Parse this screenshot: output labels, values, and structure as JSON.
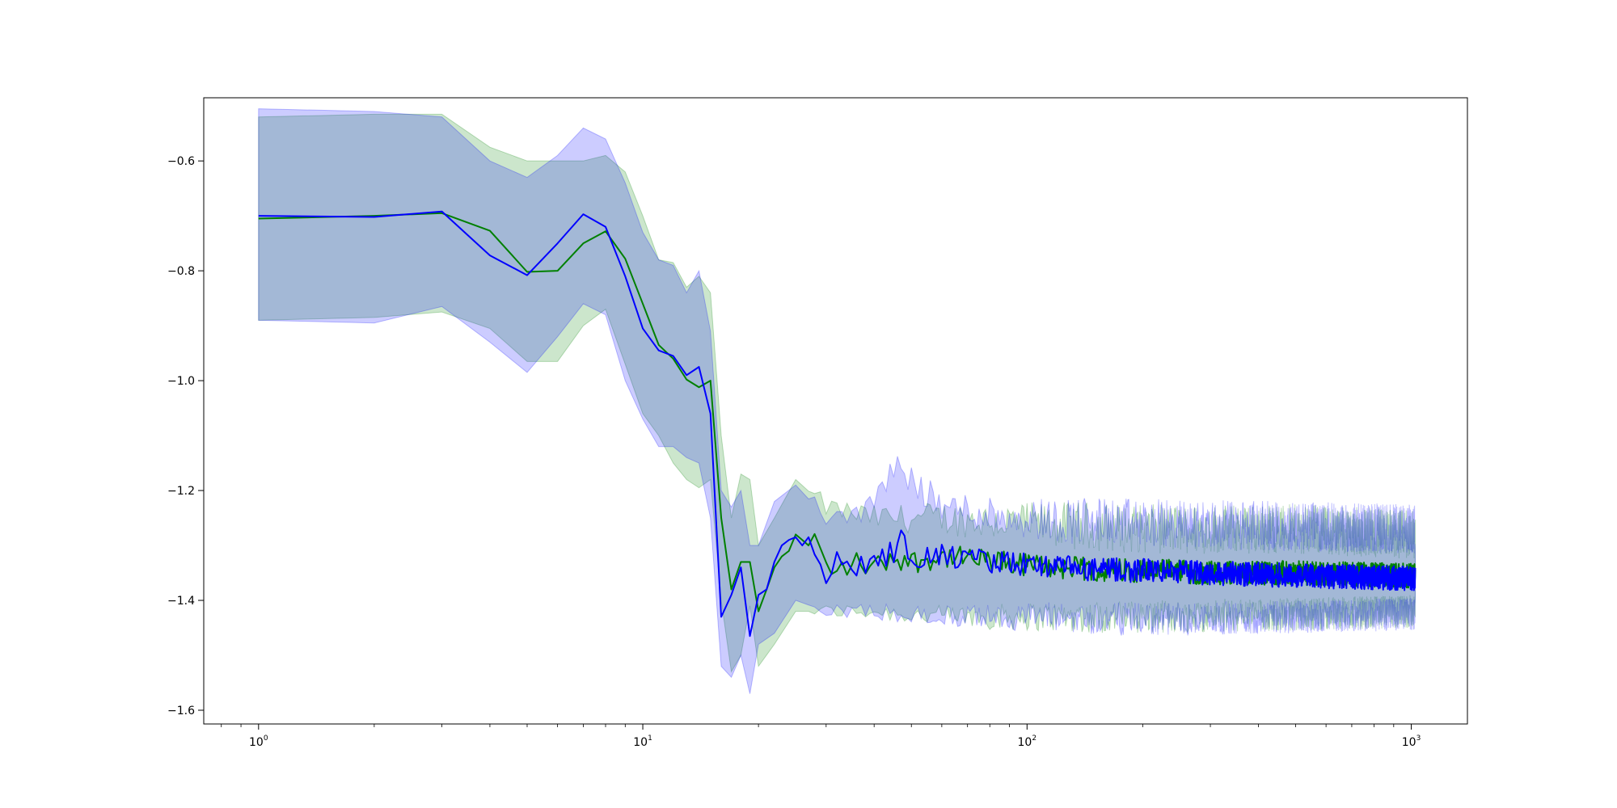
{
  "chart_data": {
    "type": "line",
    "title": "",
    "xlabel": "",
    "ylabel": "",
    "x_scale": "log",
    "xlim": [
      0.72,
      1400
    ],
    "ylim": [
      -1.625,
      -0.485
    ],
    "grid": false,
    "x_major_ticks": [
      {
        "value": 1,
        "base": "10",
        "exp": "0"
      },
      {
        "value": 10,
        "base": "10",
        "exp": "1"
      },
      {
        "value": 100,
        "base": "10",
        "exp": "2"
      },
      {
        "value": 1000,
        "base": "10",
        "exp": "3"
      }
    ],
    "y_ticks": [
      {
        "value": -0.6,
        "label": "−0.6"
      },
      {
        "value": -0.8,
        "label": "−0.8"
      },
      {
        "value": -1.0,
        "label": "−1.0"
      },
      {
        "value": -1.2,
        "label": "−1.2"
      },
      {
        "value": -1.4,
        "label": "−1.4"
      },
      {
        "value": -1.6,
        "label": "−1.6"
      }
    ],
    "band_colors": {
      "green": "#008000",
      "blue": "#0000ff"
    },
    "series": [
      {
        "color": "#008000",
        "key": [
          [
            1,
            -0.705
          ],
          [
            2,
            -0.7
          ],
          [
            3,
            -0.695
          ],
          [
            4,
            -0.727
          ],
          [
            5,
            -0.802
          ],
          [
            6,
            -0.8
          ],
          [
            7,
            -0.75
          ],
          [
            8,
            -0.728
          ],
          [
            9,
            -0.778
          ],
          [
            10,
            -0.86
          ],
          [
            11,
            -0.935
          ],
          [
            12,
            -0.96
          ],
          [
            13,
            -0.998
          ],
          [
            14,
            -1.012
          ],
          [
            15,
            -1.0
          ],
          [
            15.5,
            -1.1
          ],
          [
            16,
            -1.25
          ],
          [
            17,
            -1.38
          ],
          [
            18,
            -1.33
          ],
          [
            19,
            -1.33
          ],
          [
            20,
            -1.42
          ],
          [
            21,
            -1.38
          ],
          [
            22,
            -1.34
          ],
          [
            23,
            -1.32
          ],
          [
            24,
            -1.31
          ],
          [
            25,
            -1.28
          ],
          [
            26,
            -1.29
          ],
          [
            27,
            -1.3
          ],
          [
            28,
            -1.285
          ],
          [
            30,
            -1.34
          ],
          [
            32,
            -1.35
          ],
          [
            35,
            -1.33
          ],
          [
            40,
            -1.34
          ],
          [
            45,
            -1.32
          ],
          [
            50,
            -1.33
          ],
          [
            60,
            -1.32
          ],
          [
            80,
            -1.33
          ],
          [
            100,
            -1.335
          ],
          [
            150,
            -1.345
          ],
          [
            200,
            -1.345
          ],
          [
            300,
            -1.35
          ],
          [
            500,
            -1.35
          ],
          [
            1000,
            -1.355
          ]
        ],
        "noise_from": 28,
        "noise_amp": 0.022,
        "lower": [
          [
            1,
            -0.89
          ],
          [
            2,
            -0.885
          ],
          [
            3,
            -0.875
          ],
          [
            4,
            -0.905
          ],
          [
            5,
            -0.965
          ],
          [
            6,
            -0.965
          ],
          [
            7,
            -0.9
          ],
          [
            8,
            -0.87
          ],
          [
            9,
            -0.97
          ],
          [
            10,
            -1.06
          ],
          [
            11,
            -1.1
          ],
          [
            12,
            -1.15
          ],
          [
            13,
            -1.18
          ],
          [
            14,
            -1.195
          ],
          [
            15,
            -1.18
          ],
          [
            16,
            -1.4
          ],
          [
            17,
            -1.53
          ],
          [
            18,
            -1.5
          ],
          [
            19,
            -1.41
          ],
          [
            20,
            -1.52
          ],
          [
            22,
            -1.48
          ],
          [
            25,
            -1.42
          ],
          [
            30,
            -1.42
          ],
          [
            40,
            -1.42
          ],
          [
            60,
            -1.43
          ],
          [
            100,
            -1.43
          ],
          [
            200,
            -1.43
          ],
          [
            500,
            -1.425
          ],
          [
            1000,
            -1.42
          ]
        ],
        "upper": [
          [
            1,
            -0.52
          ],
          [
            2,
            -0.515
          ],
          [
            3,
            -0.515
          ],
          [
            4,
            -0.575
          ],
          [
            5,
            -0.6
          ],
          [
            6,
            -0.6
          ],
          [
            7,
            -0.6
          ],
          [
            8,
            -0.59
          ],
          [
            9,
            -0.62
          ],
          [
            10,
            -0.7
          ],
          [
            11,
            -0.78
          ],
          [
            12,
            -0.785
          ],
          [
            13,
            -0.83
          ],
          [
            14,
            -0.81
          ],
          [
            15,
            -0.84
          ],
          [
            16,
            -1.1
          ],
          [
            17,
            -1.25
          ],
          [
            18,
            -1.17
          ],
          [
            19,
            -1.18
          ],
          [
            20,
            -1.3
          ],
          [
            22,
            -1.25
          ],
          [
            25,
            -1.18
          ],
          [
            30,
            -1.23
          ],
          [
            40,
            -1.25
          ],
          [
            60,
            -1.25
          ],
          [
            100,
            -1.26
          ],
          [
            200,
            -1.27
          ],
          [
            500,
            -1.27
          ],
          [
            1000,
            -1.28
          ]
        ]
      },
      {
        "color": "#0000ff",
        "key": [
          [
            1,
            -0.7
          ],
          [
            2,
            -0.702
          ],
          [
            3,
            -0.692
          ],
          [
            4,
            -0.772
          ],
          [
            5,
            -0.808
          ],
          [
            6,
            -0.75
          ],
          [
            7,
            -0.697
          ],
          [
            8,
            -0.72
          ],
          [
            9,
            -0.81
          ],
          [
            10,
            -0.905
          ],
          [
            11,
            -0.945
          ],
          [
            12,
            -0.955
          ],
          [
            13,
            -0.99
          ],
          [
            14,
            -0.975
          ],
          [
            15,
            -1.06
          ],
          [
            15.5,
            -1.2
          ],
          [
            16,
            -1.43
          ],
          [
            17,
            -1.39
          ],
          [
            18,
            -1.34
          ],
          [
            19,
            -1.465
          ],
          [
            20,
            -1.39
          ],
          [
            21,
            -1.38
          ],
          [
            22,
            -1.33
          ],
          [
            23,
            -1.3
          ],
          [
            24,
            -1.29
          ],
          [
            25,
            -1.285
          ],
          [
            26,
            -1.3
          ],
          [
            27,
            -1.285
          ],
          [
            28,
            -1.295
          ],
          [
            30,
            -1.355
          ],
          [
            32,
            -1.33
          ],
          [
            35,
            -1.34
          ],
          [
            40,
            -1.33
          ],
          [
            45,
            -1.31
          ],
          [
            46,
            -1.28
          ],
          [
            50,
            -1.32
          ],
          [
            60,
            -1.32
          ],
          [
            80,
            -1.33
          ],
          [
            100,
            -1.335
          ],
          [
            150,
            -1.345
          ],
          [
            200,
            -1.345
          ],
          [
            300,
            -1.35
          ],
          [
            500,
            -1.355
          ],
          [
            1000,
            -1.36
          ]
        ],
        "noise_from": 28,
        "noise_amp": 0.022,
        "lower": [
          [
            1,
            -0.89
          ],
          [
            2,
            -0.895
          ],
          [
            3,
            -0.865
          ],
          [
            4,
            -0.93
          ],
          [
            5,
            -0.985
          ],
          [
            6,
            -0.92
          ],
          [
            7,
            -0.86
          ],
          [
            8,
            -0.88
          ],
          [
            9,
            -1.0
          ],
          [
            10,
            -1.07
          ],
          [
            11,
            -1.12
          ],
          [
            12,
            -1.12
          ],
          [
            13,
            -1.14
          ],
          [
            14,
            -1.15
          ],
          [
            15,
            -1.25
          ],
          [
            16,
            -1.52
          ],
          [
            17,
            -1.54
          ],
          [
            18,
            -1.5
          ],
          [
            19,
            -1.57
          ],
          [
            20,
            -1.48
          ],
          [
            22,
            -1.46
          ],
          [
            25,
            -1.4
          ],
          [
            30,
            -1.42
          ],
          [
            40,
            -1.42
          ],
          [
            60,
            -1.43
          ],
          [
            100,
            -1.43
          ],
          [
            200,
            -1.435
          ],
          [
            500,
            -1.43
          ],
          [
            1000,
            -1.425
          ]
        ],
        "upper": [
          [
            1,
            -0.505
          ],
          [
            2,
            -0.51
          ],
          [
            3,
            -0.52
          ],
          [
            4,
            -0.6
          ],
          [
            5,
            -0.63
          ],
          [
            6,
            -0.59
          ],
          [
            7,
            -0.54
          ],
          [
            8,
            -0.56
          ],
          [
            9,
            -0.64
          ],
          [
            10,
            -0.73
          ],
          [
            11,
            -0.78
          ],
          [
            12,
            -0.79
          ],
          [
            13,
            -0.84
          ],
          [
            14,
            -0.8
          ],
          [
            15,
            -0.91
          ],
          [
            16,
            -1.2
          ],
          [
            17,
            -1.23
          ],
          [
            18,
            -1.2
          ],
          [
            19,
            -1.3
          ],
          [
            20,
            -1.3
          ],
          [
            22,
            -1.22
          ],
          [
            25,
            -1.19
          ],
          [
            30,
            -1.25
          ],
          [
            40,
            -1.23
          ],
          [
            45,
            -1.15
          ],
          [
            60,
            -1.23
          ],
          [
            100,
            -1.25
          ],
          [
            200,
            -1.26
          ],
          [
            500,
            -1.265
          ],
          [
            1000,
            -1.27
          ]
        ]
      }
    ]
  }
}
